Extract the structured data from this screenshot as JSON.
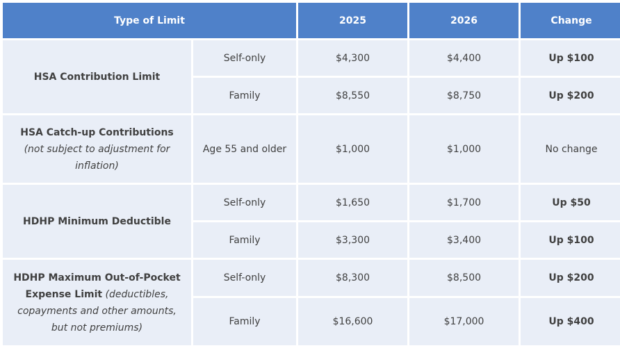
{
  "headers": {
    "type_of_limit": "Type of Limit",
    "year_2025": "2025",
    "year_2026": "2026",
    "change": "Change"
  },
  "rows": {
    "hsa_contribution": {
      "title": "HSA Contribution Limit",
      "self_only": {
        "label": "Self-only",
        "v2025": "$4,300",
        "v2026": "$4,400",
        "change": "Up $100"
      },
      "family": {
        "label": "Family",
        "v2025": "$8,550",
        "v2026": "$8,750",
        "change": "Up $200"
      }
    },
    "hsa_catchup": {
      "title": "HSA Catch-up Contributions",
      "note": "(not subject to adjustment for inflation)",
      "age": {
        "label": "Age 55 and older",
        "v2025": "$1,000",
        "v2026": "$1,000",
        "change": "No change"
      }
    },
    "hdhp_min_deductible": {
      "title": "HDHP Minimum Deductible",
      "self_only": {
        "label": "Self-only",
        "v2025": "$1,650",
        "v2026": "$1,700",
        "change": "Up $50"
      },
      "family": {
        "label": "Family",
        "v2025": "$3,300",
        "v2026": "$3,400",
        "change": "Up $100"
      }
    },
    "hdhp_max_oop": {
      "title": "HDHP Maximum Out-of-Pocket Expense Limit",
      "note": "(deductibles, copayments and other amounts, but not premiums)",
      "self_only": {
        "label": "Self-only",
        "v2025": "$8,300",
        "v2026": "$8,500",
        "change": "Up $200"
      },
      "family": {
        "label": "Family",
        "v2025": "$16,600",
        "v2026": "$17,000",
        "change": "Up $400"
      }
    }
  }
}
